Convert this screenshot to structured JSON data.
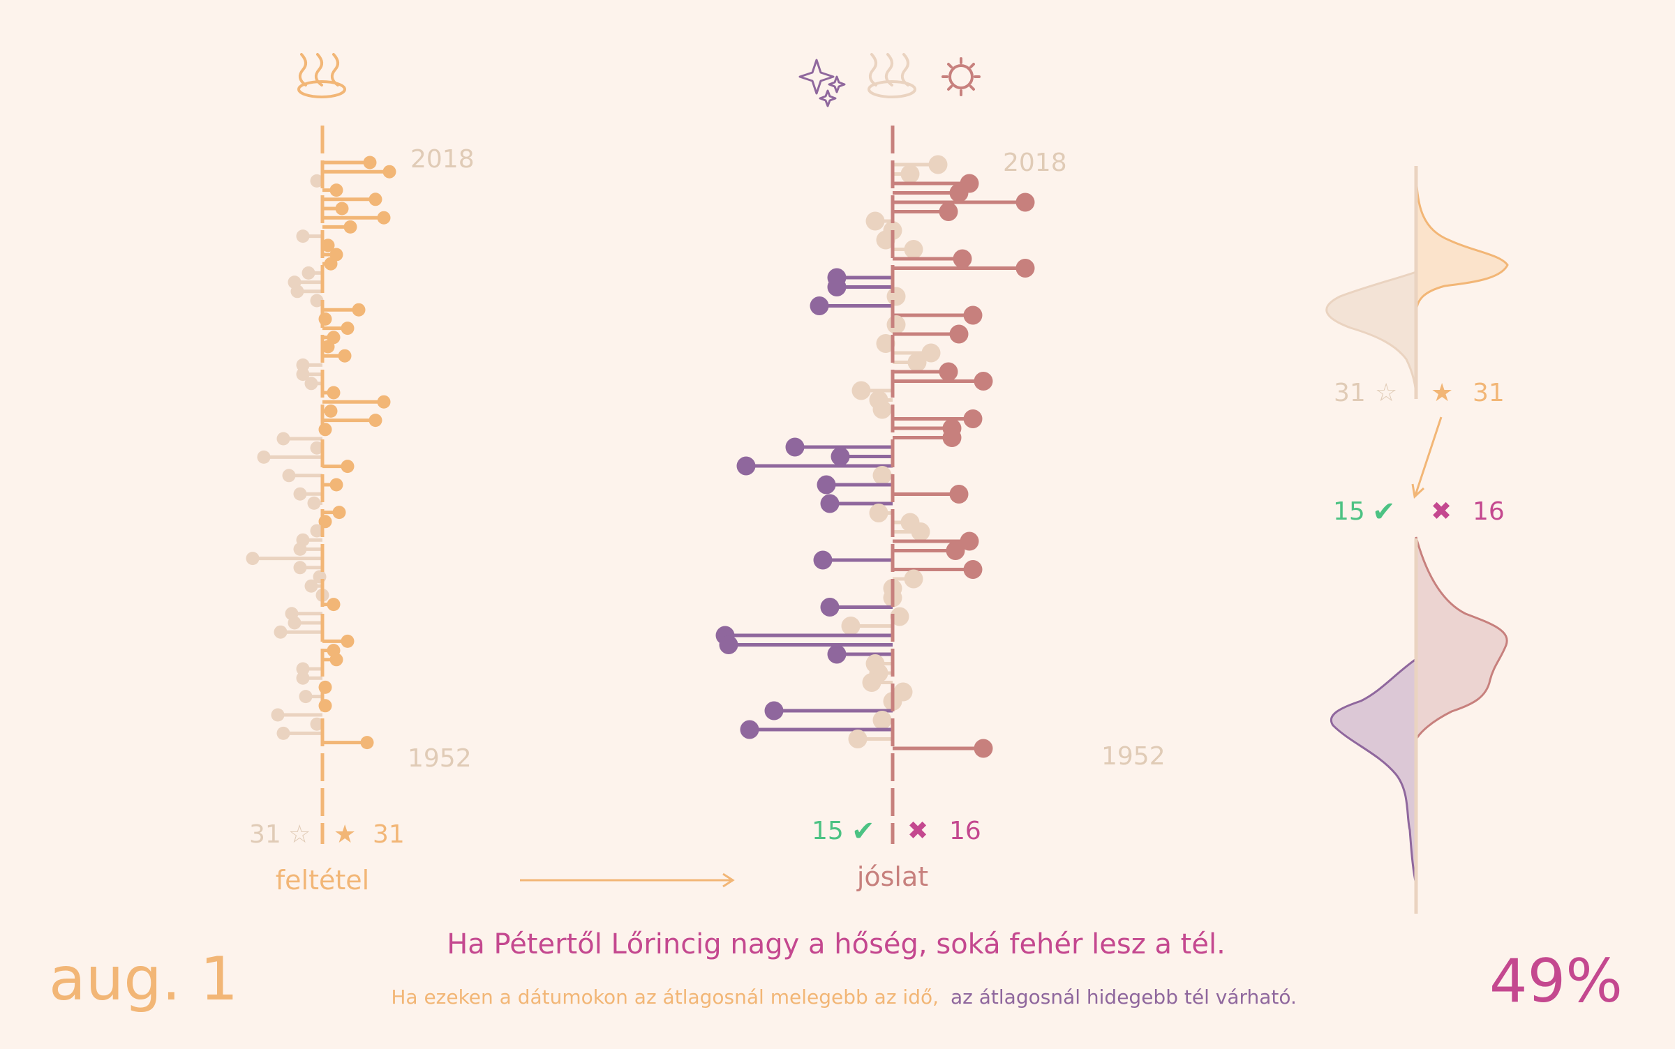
{
  "date_label": "aug. 1",
  "percent_label": "49%",
  "title": "Ha Pétertől Lőrincig nagy a hőség, soká fehér lesz a tél.",
  "subtitle_part1": "Ha ezeken a dátumokon az átlagosnál melegebb az idő,",
  "subtitle_part2": "az átlagosnál hidegebb tél várható.",
  "colors": {
    "background": "#fdf3ec",
    "condition_orange": "#f2b676",
    "faded_beige": "#ead3c0",
    "warm_red": "#c7807d",
    "cold_purple": "#8f679d",
    "check_green": "#4cc283",
    "cross_pink": "#c4488f",
    "label_muted": "#e0cbb6"
  },
  "icons": {
    "condition": "hot-springs-icon",
    "prediction": [
      "sparkles-icon",
      "hot-springs-icon",
      "sun-icon"
    ]
  },
  "left_panel": {
    "axis_label": "feltétel",
    "year_top": "2018",
    "year_bottom": "1952",
    "count_not_met": "31",
    "count_met": "31",
    "star_empty": "☆",
    "star_full": "★"
  },
  "middle_panel": {
    "axis_label": "jóslat",
    "year_top": "2018",
    "year_bottom": "1952",
    "count_correct": "15",
    "count_wrong": "16",
    "check": "✔",
    "cross": "✖"
  },
  "right_panel": {
    "count_not_met": "31",
    "count_met": "31",
    "count_correct": "15",
    "count_wrong": "16",
    "star_empty": "☆",
    "star_full": "★",
    "check": "✔",
    "cross": "✖"
  },
  "chart_data": [
    {
      "type": "lollipop",
      "name": "feltétel",
      "years_descending_from": 2018,
      "years": [
        2018,
        1952
      ],
      "values": [
        1.7,
        2.4,
        -0.2,
        0.5,
        1.9,
        0.7,
        2.2,
        1.0,
        -0.7,
        0.2,
        0.5,
        0.3,
        -0.5,
        -1.0,
        -0.9,
        -0.2,
        1.3,
        0.1,
        0.9,
        0.4,
        0.2,
        0.8,
        -0.7,
        -0.7,
        -0.4,
        0.4,
        2.2,
        0.3,
        1.9,
        0.1,
        -1.4,
        -0.2,
        -2.1,
        0.9,
        -1.2,
        0.5,
        -0.8,
        -0.3,
        0.6,
        0.1,
        -0.2,
        -0.7,
        -0.8,
        -2.5,
        -0.8,
        -0.1,
        -0.4,
        0.0,
        0.4,
        -1.1,
        -1.0,
        -1.5,
        0.9,
        0.4,
        0.5,
        -0.7,
        -0.7,
        0.1,
        -0.6,
        0.1,
        -1.6,
        -0.2,
        -1.4,
        1.6
      ]
    },
    {
      "type": "lollipop",
      "name": "jóslat",
      "years_descending_from": 2018,
      "years": [
        2018,
        1952
      ],
      "values": [
        1.3,
        0.5,
        2.2,
        1.9,
        3.8,
        1.6,
        -0.5,
        0.0,
        -0.2,
        0.6,
        2.0,
        3.8,
        -1.6,
        -1.6,
        0.1,
        -2.1,
        2.3,
        0.1,
        1.9,
        -0.2,
        1.1,
        0.7,
        1.6,
        2.6,
        -0.9,
        -0.4,
        -0.3,
        2.3,
        1.7,
        1.7,
        -2.8,
        -1.5,
        -4.2,
        -0.3,
        -1.9,
        1.9,
        -1.8,
        -0.4,
        0.5,
        0.8,
        2.2,
        1.8,
        -2.0,
        2.3,
        0.6,
        0.0,
        0.0,
        -1.8,
        0.2,
        -1.2,
        -4.8,
        -4.7,
        -1.6,
        -0.5,
        -0.4,
        -0.6,
        0.3,
        0.0,
        -3.4,
        -0.3,
        -4.1,
        -1.0,
        2.6
      ]
    }
  ]
}
